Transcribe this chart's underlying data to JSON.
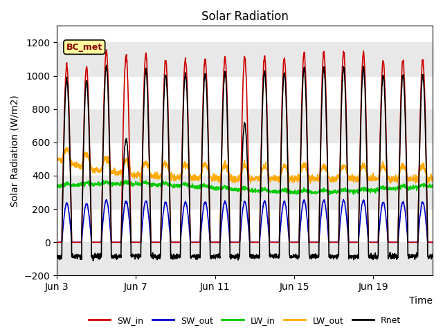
{
  "title": "Solar Radiation",
  "ylabel": "Solar Radiation (W/m2)",
  "xlabel": "Time",
  "ylim": [
    -200,
    1300
  ],
  "yticks": [
    -200,
    0,
    200,
    400,
    600,
    800,
    1000,
    1200
  ],
  "xtick_labels": [
    "Jun 3",
    "Jun 7",
    "Jun 11",
    "Jun 15",
    "Jun 19"
  ],
  "xtick_positions": [
    0,
    4,
    8,
    12,
    16
  ],
  "annotation_text": "BC_met",
  "colors": {
    "SW_in": "#cc0000",
    "SW_out": "#0000cc",
    "LW_in": "#00cc00",
    "LW_out": "#ffaa00",
    "Rnet": "#000000"
  },
  "figsize": [
    6.4,
    4.8
  ],
  "dpi": 100,
  "n_days": 19,
  "pts_per_day": 96
}
